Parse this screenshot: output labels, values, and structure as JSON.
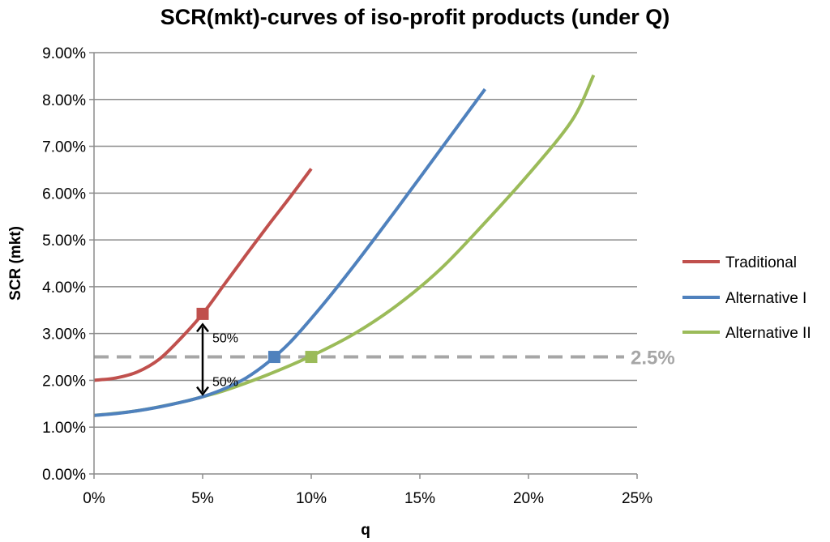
{
  "chart_data": {
    "type": "line",
    "title": "SCR(mkt)-curves of iso-profit products (under Q)",
    "xlabel": "q",
    "ylabel": "SCR (mkt)",
    "xlim": [
      0,
      0.25
    ],
    "ylim": [
      0,
      0.09
    ],
    "x_ticks": [
      {
        "value": 0,
        "label": "0%"
      },
      {
        "value": 0.05,
        "label": "5%"
      },
      {
        "value": 0.1,
        "label": "10%"
      },
      {
        "value": 0.15,
        "label": "15%"
      },
      {
        "value": 0.2,
        "label": "20%"
      },
      {
        "value": 0.25,
        "label": "25%"
      }
    ],
    "y_ticks": [
      {
        "value": 0,
        "label": "0.00%"
      },
      {
        "value": 0.01,
        "label": "1.00%"
      },
      {
        "value": 0.02,
        "label": "2.00%"
      },
      {
        "value": 0.03,
        "label": "3.00%"
      },
      {
        "value": 0.04,
        "label": "4.00%"
      },
      {
        "value": 0.05,
        "label": "5.00%"
      },
      {
        "value": 0.06,
        "label": "6.00%"
      },
      {
        "value": 0.07,
        "label": "7.00%"
      },
      {
        "value": 0.08,
        "label": "8.00%"
      },
      {
        "value": 0.09,
        "label": "9.00%"
      }
    ],
    "grid": "horizontal",
    "legend_position": "right",
    "series": [
      {
        "name": "Traditional",
        "color": "#C0504D",
        "x": [
          0,
          0.01,
          0.02,
          0.03,
          0.04,
          0.05,
          0.06,
          0.07,
          0.08,
          0.09,
          0.1
        ],
        "y": [
          0.02,
          0.0205,
          0.0218,
          0.0245,
          0.029,
          0.0342,
          0.0405,
          0.0468,
          0.053,
          0.059,
          0.0652
        ]
      },
      {
        "name": "Alternative I",
        "color": "#4F81BD",
        "x": [
          0,
          0.01,
          0.02,
          0.03,
          0.04,
          0.05,
          0.06,
          0.07,
          0.08,
          0.09,
          0.1,
          0.11,
          0.12,
          0.13,
          0.14,
          0.15,
          0.16,
          0.17,
          0.18
        ],
        "y": [
          0.0125,
          0.0129,
          0.0135,
          0.0143,
          0.0153,
          0.0165,
          0.0182,
          0.0205,
          0.0238,
          0.028,
          0.0332,
          0.0388,
          0.0447,
          0.0508,
          0.057,
          0.0633,
          0.0696,
          0.0759,
          0.0822
        ]
      },
      {
        "name": "Alternative II",
        "color": "#9BBB59",
        "x": [
          0,
          0.02,
          0.04,
          0.05,
          0.06,
          0.08,
          0.1,
          0.12,
          0.14,
          0.16,
          0.18,
          0.2,
          0.22,
          0.23
        ],
        "y": [
          0.0125,
          0.0135,
          0.0153,
          0.0165,
          0.0178,
          0.0212,
          0.0252,
          0.03,
          0.0362,
          0.044,
          0.0537,
          0.064,
          0.0755,
          0.0852
        ]
      }
    ],
    "reference_line": {
      "value": 0.025,
      "label": "2.5%",
      "color": "#A6A6A6",
      "style": "dashed"
    },
    "markers": [
      {
        "series": "Traditional",
        "x": 0.05,
        "y": 0.0342,
        "shape": "square"
      },
      {
        "series": "Alternative I",
        "x": 0.083,
        "y": 0.025,
        "shape": "square"
      },
      {
        "series": "Alternative II",
        "x": 0.1,
        "y": 0.025,
        "shape": "square"
      }
    ],
    "annotations": [
      {
        "type": "double-arrow",
        "x": 0.05,
        "y_from": 0.0165,
        "y_to": 0.0342
      },
      {
        "text": "50%",
        "x": 0.05,
        "y": 0.0292
      },
      {
        "text": "50%",
        "x": 0.05,
        "y": 0.0198
      }
    ]
  }
}
